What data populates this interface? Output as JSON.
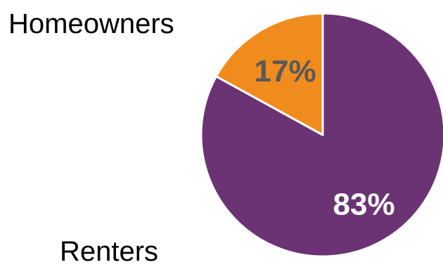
{
  "chart_data": {
    "type": "pie",
    "slices": [
      {
        "label": "Renters",
        "value": 83,
        "value_label": "83%",
        "color": "#6b3374",
        "value_label_color": "#ffffff"
      },
      {
        "label": "Homeowners",
        "value": 17,
        "value_label": "17%",
        "color": "#f08c1e",
        "value_label_color": "#595959"
      }
    ],
    "start_angle_deg": 0,
    "direction": "clockwise",
    "slice_border_color": "#ffffff"
  }
}
